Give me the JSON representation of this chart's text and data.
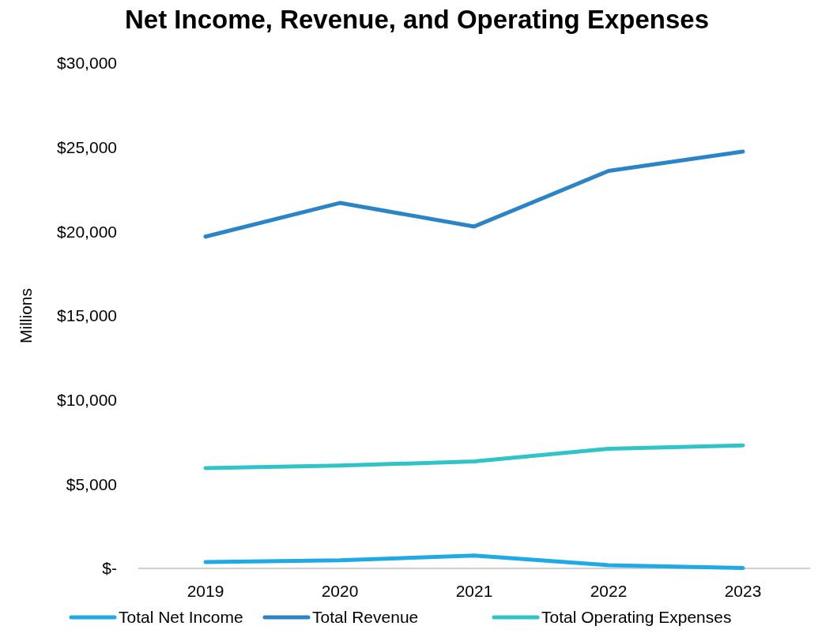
{
  "chart_data": {
    "type": "line",
    "title": "Net Income, Revenue, and Operating Expenses",
    "ylabel": "Millions",
    "categories": [
      "2019",
      "2020",
      "2021",
      "2022",
      "2023"
    ],
    "series": [
      {
        "name": "Total Net Income",
        "color": "#1eaae6",
        "values": [
          380,
          480,
          760,
          190,
          20
        ]
      },
      {
        "name": "Total Revenue",
        "color": "#2b84c8",
        "values": [
          19700,
          21700,
          20300,
          23600,
          24750
        ]
      },
      {
        "name": "Total Operating Expenses",
        "color": "#2ec4c8",
        "values": [
          5950,
          6100,
          6350,
          7100,
          7300
        ]
      }
    ],
    "ylim": [
      0,
      30000
    ],
    "yticks": [
      {
        "value": 0,
        "label": "$-"
      },
      {
        "value": 5000,
        "label": "$5,000"
      },
      {
        "value": 10000,
        "label": "$10,000"
      },
      {
        "value": 15000,
        "label": "$15,000"
      },
      {
        "value": 20000,
        "label": "$20,000"
      },
      {
        "value": 25000,
        "label": "$25,000"
      },
      {
        "value": 30000,
        "label": "$30,000"
      }
    ],
    "grid": false,
    "legend": "bottom",
    "marker": "none",
    "line_style": "solid"
  }
}
